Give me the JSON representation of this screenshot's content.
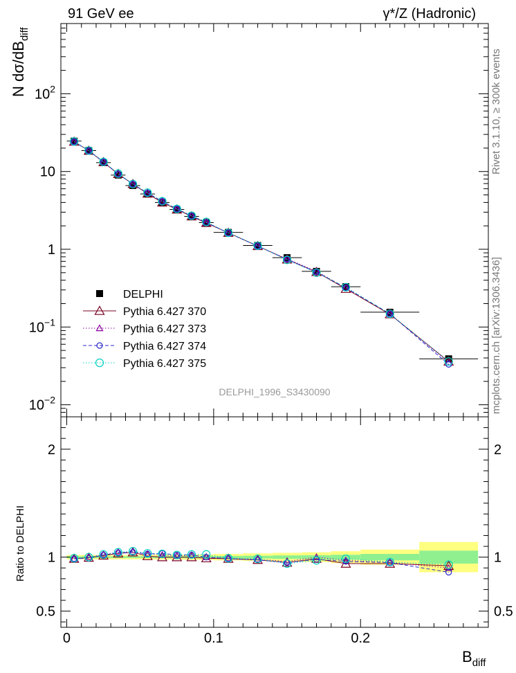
{
  "header": {
    "left": "91 GeV ee",
    "right": "γ*/Z (Hadronic)"
  },
  "side_labels": {
    "rivet": "Rivet 3.1.10, ≥ 300k events",
    "mcplots": "mcplots.cern.ch [arXiv:1306.3436]"
  },
  "watermark": "DELPHI_1996_S3430090",
  "chart_data": [
    {
      "type": "line",
      "panel": "main",
      "yscale": "log",
      "ylabel": "N dσ/dB",
      "ylabel_sub": "diff",
      "ylim": [
        0.007,
        800
      ],
      "xlim": [
        -0.004,
        0.287
      ],
      "y_ticks": [
        {
          "value": 0.01,
          "base": "10",
          "exp": "−2"
        },
        {
          "value": 0.1,
          "base": "10",
          "exp": "−1"
        },
        {
          "value": 1,
          "base": "1",
          "exp": ""
        },
        {
          "value": 10,
          "base": "10",
          "exp": ""
        },
        {
          "value": 100,
          "base": "10",
          "exp": "2"
        }
      ],
      "x": [
        0.005,
        0.015,
        0.025,
        0.035,
        0.045,
        0.055,
        0.065,
        0.075,
        0.085,
        0.095,
        0.11,
        0.13,
        0.15,
        0.17,
        0.19,
        0.22,
        0.26
      ],
      "x_err": [
        0.005,
        0.005,
        0.005,
        0.005,
        0.005,
        0.005,
        0.005,
        0.005,
        0.005,
        0.005,
        0.01,
        0.01,
        0.01,
        0.01,
        0.01,
        0.02,
        0.02
      ],
      "series": [
        {
          "name": "DELPHI",
          "marker": "square",
          "color": "#000000",
          "line": "none",
          "values": [
            24.6,
            18.6,
            13.0,
            9.0,
            6.6,
            5.15,
            4.0,
            3.25,
            2.65,
            2.2,
            1.65,
            1.12,
            0.78,
            0.52,
            0.33,
            0.155,
            0.039
          ]
        },
        {
          "name": "Pythia 6.427 370",
          "marker": "triangle",
          "color": "#7a0020",
          "line": "solid",
          "values": [
            24.2,
            18.5,
            13.2,
            9.3,
            6.9,
            5.2,
            4.0,
            3.25,
            2.65,
            2.18,
            1.63,
            1.1,
            0.74,
            0.51,
            0.31,
            0.146,
            0.036
          ]
        },
        {
          "name": "Pythia 6.427 373",
          "marker": "triangle-small",
          "color": "#8a00a0",
          "line": "dotted",
          "values": [
            24.3,
            18.6,
            13.3,
            9.4,
            6.9,
            5.3,
            4.1,
            3.3,
            2.7,
            2.2,
            1.63,
            1.1,
            0.75,
            0.52,
            0.32,
            0.148,
            0.035
          ]
        },
        {
          "name": "Pythia 6.427 374",
          "marker": "circle-small",
          "color": "#2a2acc",
          "line": "dashed",
          "values": [
            24.2,
            18.5,
            13.3,
            9.3,
            6.9,
            5.3,
            4.15,
            3.3,
            2.68,
            2.22,
            1.62,
            1.1,
            0.74,
            0.51,
            0.32,
            0.148,
            0.033
          ]
        },
        {
          "name": "Pythia 6.427 375",
          "marker": "circle",
          "color": "#00d0c0",
          "line": "dotted",
          "values": [
            24.3,
            18.6,
            13.3,
            9.4,
            6.9,
            5.35,
            4.15,
            3.3,
            2.7,
            2.25,
            1.63,
            1.11,
            0.73,
            0.5,
            0.325,
            0.148,
            0.036
          ]
        }
      ]
    },
    {
      "type": "line",
      "panel": "ratio",
      "ylabel": "Ratio to DELPHI",
      "xlabel": "B",
      "xlabel_sub": "diff",
      "ylim": [
        0.35,
        2.3
      ],
      "xlim": [
        -0.004,
        0.287
      ],
      "x_ticks": [
        {
          "value": 0,
          "label": "0"
        },
        {
          "value": 0.1,
          "label": "0.1"
        },
        {
          "value": 0.2,
          "label": "0.2"
        }
      ],
      "y_ticks": [
        {
          "value": 0.5,
          "label": "0.5"
        },
        {
          "value": 1,
          "label": "1"
        },
        {
          "value": 2,
          "label": "2"
        }
      ],
      "x": [
        0.005,
        0.015,
        0.025,
        0.035,
        0.045,
        0.055,
        0.065,
        0.075,
        0.085,
        0.095,
        0.11,
        0.13,
        0.15,
        0.17,
        0.19,
        0.22,
        0.26
      ],
      "x_err": [
        0.005,
        0.005,
        0.005,
        0.005,
        0.005,
        0.005,
        0.005,
        0.005,
        0.005,
        0.005,
        0.01,
        0.01,
        0.01,
        0.01,
        0.01,
        0.02,
        0.02
      ],
      "bands": {
        "stat_half_width": [
          0.008,
          0.008,
          0.008,
          0.008,
          0.008,
          0.008,
          0.009,
          0.009,
          0.01,
          0.01,
          0.011,
          0.013,
          0.016,
          0.018,
          0.022,
          0.03,
          0.06
        ],
        "total_half_width": [
          0.02,
          0.02,
          0.02,
          0.02,
          0.02,
          0.02,
          0.022,
          0.022,
          0.025,
          0.025,
          0.03,
          0.035,
          0.04,
          0.045,
          0.055,
          0.07,
          0.14
        ]
      },
      "series": [
        {
          "name": "Pythia 6.427 370",
          "marker": "triangle",
          "color": "#7a0020",
          "line": "solid",
          "values": [
            0.985,
            0.995,
            1.015,
            1.035,
            1.045,
            1.01,
            1.0,
            1.0,
            1.0,
            0.99,
            0.985,
            0.975,
            0.95,
            0.985,
            0.94,
            0.94,
            0.92
          ]
        },
        {
          "name": "Pythia 6.427 373",
          "marker": "triangle-small",
          "color": "#8a00a0",
          "line": "dotted",
          "values": [
            0.985,
            1.0,
            1.025,
            1.045,
            1.05,
            1.03,
            1.02,
            1.01,
            1.02,
            1.0,
            0.99,
            0.98,
            0.96,
            1.0,
            0.97,
            0.95,
            0.9
          ]
        },
        {
          "name": "Pythia 6.427 374",
          "marker": "circle-small",
          "color": "#2a2acc",
          "line": "dashed",
          "values": [
            0.985,
            0.99,
            1.02,
            1.04,
            1.045,
            1.03,
            1.035,
            1.02,
            1.02,
            1.0,
            0.985,
            0.975,
            0.95,
            0.98,
            0.96,
            0.95,
            0.86
          ]
        },
        {
          "name": "Pythia 6.427 375",
          "marker": "circle",
          "color": "#00d0c0",
          "line": "dotted",
          "values": [
            0.99,
            1.0,
            1.025,
            1.045,
            1.055,
            1.035,
            1.03,
            1.02,
            1.025,
            1.025,
            0.99,
            0.985,
            0.94,
            0.97,
            0.985,
            0.955,
            0.93
          ]
        }
      ]
    }
  ]
}
